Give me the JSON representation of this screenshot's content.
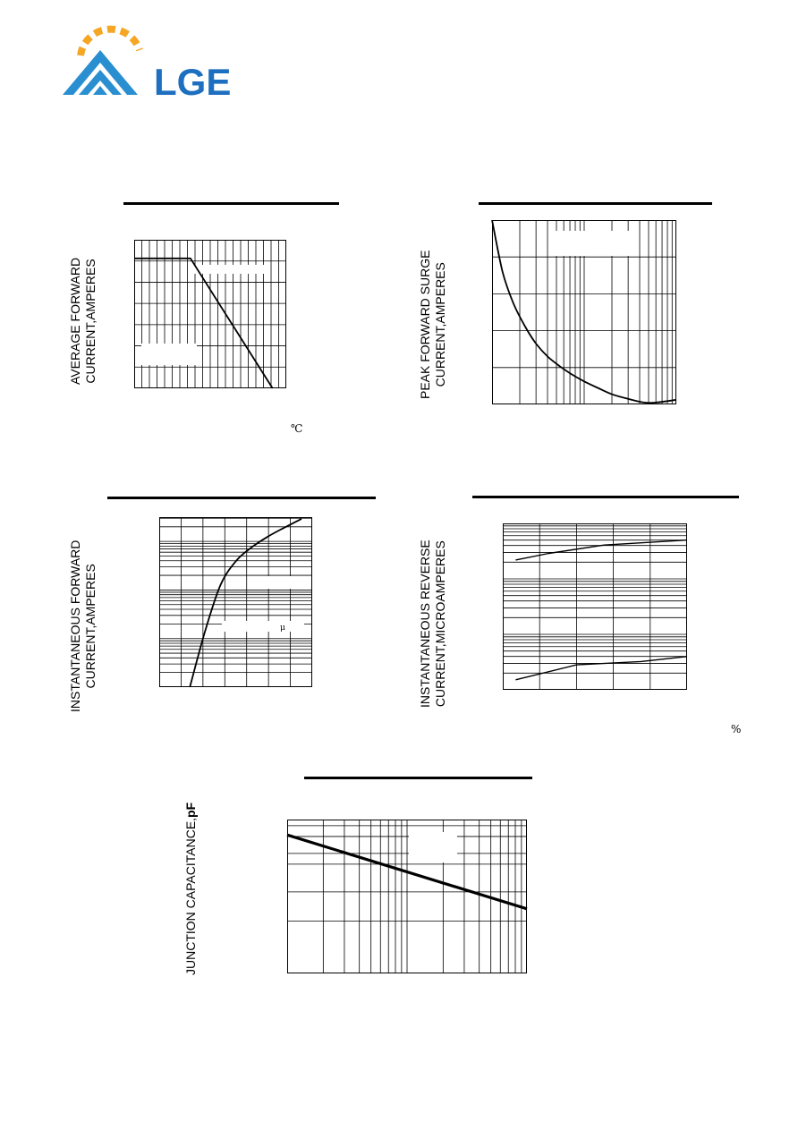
{
  "logo": {
    "text": "LGE",
    "colors": {
      "arc": "#f5a623",
      "chevron": "#2a8fd0",
      "text": "#1e6fbf"
    }
  },
  "charts": {
    "c1": {
      "ylabel_line1": "AVERAGE FORWARD",
      "ylabel_line2": "CURRENT,AMPERES",
      "unit": "℃"
    },
    "c2": {
      "ylabel_line1": "PEAK FORWARD SURGE",
      "ylabel_line2": "CURRENT,AMPERES"
    },
    "c3": {
      "ylabel_line1": "INSTANTANEOUS FORWARD",
      "ylabel_line2": "CURRENT,AMPERES",
      "annotation": "μ"
    },
    "c4": {
      "ylabel_line1": "INSTANTANEOUS REVERSE",
      "ylabel_line2": "CURRENT,MICROAMPERES",
      "unit": "%"
    },
    "c5": {
      "ylabel_pre": "JUNCTION CAPACITANCE,",
      "ylabel_unit": "pF"
    }
  },
  "chart_data": [
    {
      "type": "line",
      "x": [
        0,
        0.37,
        0.91
      ],
      "values": [
        0.875,
        0.875,
        0
      ],
      "xlim": [
        0,
        1
      ],
      "ylim": [
        0,
        1
      ]
    },
    {
      "type": "line",
      "xscale": "log",
      "x": [
        1,
        1.3,
        1.7,
        2.3,
        3,
        4,
        5.5,
        7.5,
        10,
        14,
        20,
        30,
        45,
        60,
        100
      ],
      "values": [
        1.0,
        0.72,
        0.55,
        0.42,
        0.33,
        0.26,
        0.205,
        0.16,
        0.125,
        0.09,
        0.055,
        0.03,
        0.01,
        0.01,
        0.025
      ],
      "ylim": [
        0,
        1
      ]
    },
    {
      "type": "line",
      "yscale": "log",
      "xlim": [
        0,
        1
      ],
      "x": [
        0.2,
        0.3,
        0.4,
        0.5,
        0.6,
        0.7,
        0.8,
        0.93
      ],
      "values": [
        0.0,
        0.33,
        0.6,
        0.74,
        0.82,
        0.88,
        0.93,
        0.99
      ],
      "ylim": [
        0,
        1
      ]
    },
    {
      "type": "line",
      "yscale": "log",
      "xlim": [
        0,
        1
      ],
      "ylim": [
        0,
        1
      ],
      "series": [
        {
          "x": [
            0.07,
            0.25,
            0.55,
            1.0
          ],
          "values": [
            0.78,
            0.82,
            0.87,
            0.9
          ]
        },
        {
          "x": [
            0.07,
            0.4,
            0.75,
            1.0
          ],
          "values": [
            0.06,
            0.15,
            0.17,
            0.2
          ]
        }
      ]
    },
    {
      "type": "line",
      "xscale": "log",
      "yscale": "log",
      "xlim": [
        1,
        100
      ],
      "ylim": [
        0,
        1
      ],
      "x": [
        1,
        100
      ],
      "values": [
        0.9,
        0.42
      ]
    }
  ]
}
